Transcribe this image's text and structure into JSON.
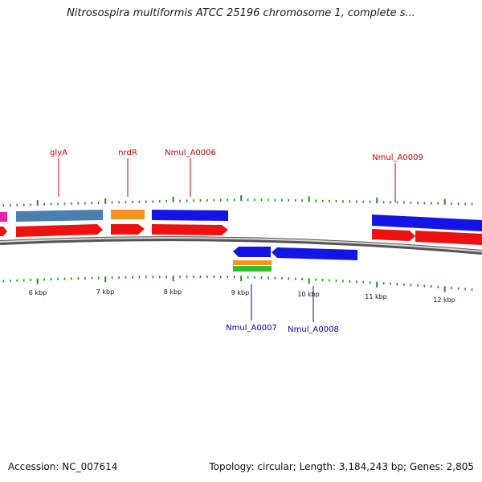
{
  "header": {
    "title": "Nitrosospira multiformis ATCC 25196 chromosome 1, complete s..."
  },
  "map": {
    "tick_labels": [
      "6 kbp",
      "7 kbp",
      "8 kbp",
      "9 kbp",
      "10 kbp",
      "11 kbp",
      "12 kbp"
    ],
    "gene_labels_top": [
      "glyA",
      "nrdR",
      "Nmul_A0006",
      "Nmul_A0009"
    ],
    "gene_labels_bottom": [
      "Nmul_A0007",
      "Nmul_A0008"
    ],
    "colors": {
      "label_top": "#cc0000",
      "label_bottom": "#0000bb",
      "tick": "#2a8a2a",
      "backbone": "#8a8a8a",
      "cds_red": "#ee1111",
      "gene_blue": "#1414e6",
      "gene_steel": "#4a7fb0",
      "gene_orange": "#f5941e",
      "gene_green": "#33bb33",
      "gene_magenta": "#ee22aa"
    }
  },
  "footer": {
    "accession": "Accession: NC_007614",
    "stats": "Topology: circular; Length: 3,184,243 bp; Genes: 2,805"
  }
}
